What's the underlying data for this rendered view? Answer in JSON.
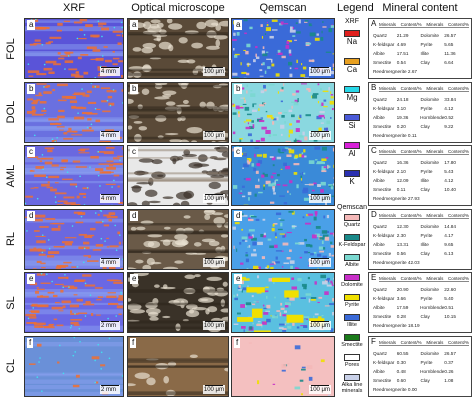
{
  "headers": {
    "xrf": "XRF",
    "optical": "Optical microscope",
    "qemscan": "Qemscan",
    "legend": "Legend",
    "mineral": "Mineral content"
  },
  "rows": [
    {
      "label": "FOL",
      "tags": [
        "a",
        "a",
        "a"
      ],
      "scales": [
        "4 mm",
        "100 μm",
        "100 μm"
      ],
      "table_letter": "A",
      "minerals": [
        [
          "Quartz",
          "21.29",
          "Dolomite",
          "26.57"
        ],
        [
          "K-feldspar",
          "4.69",
          "Pyrite",
          "5.65"
        ],
        [
          "Albite",
          "17.51",
          "Illite",
          "11.36"
        ],
        [
          "Smectite",
          "0.54",
          "Clay",
          "6.64"
        ]
      ],
      "reedmergnerite": "Reedmergnerite  2.67"
    },
    {
      "label": "DOL",
      "tags": [
        "b",
        "b",
        "b"
      ],
      "scales": [
        "4 mm",
        "100 μm",
        "100 μm"
      ],
      "table_letter": "B",
      "minerals": [
        [
          "Quartz",
          "24.18",
          "Dolomite",
          "33.84"
        ],
        [
          "K-feldspar",
          "3.10",
          "Pyrite",
          "4.12"
        ],
        [
          "Albite",
          "19.36",
          "Hornblende",
          "0.52"
        ],
        [
          "Smectite",
          "0.20",
          "Clay",
          "9.22"
        ]
      ],
      "reedmergnerite": "Reedmergnerite  0.11"
    },
    {
      "label": "AML",
      "tags": [
        "c",
        "c",
        "c"
      ],
      "scales": [
        "4 mm",
        "100 μm",
        "100 μm"
      ],
      "table_letter": "C",
      "minerals": [
        [
          "Quartz",
          "16.36",
          "Dolomite",
          "17.80"
        ],
        [
          "K-feldspar",
          "2.10",
          "Pyrite",
          "5.43"
        ],
        [
          "Albite",
          "12.09",
          "Illite",
          "4.12"
        ],
        [
          "Smectite",
          "0.11",
          "Clay",
          "10.40"
        ]
      ],
      "reedmergnerite": "Reedmergnerite  27.93"
    },
    {
      "label": "RL",
      "tags": [
        "d",
        "d",
        "d"
      ],
      "scales": [
        "4 mm",
        "100 μm",
        "100 μm"
      ],
      "table_letter": "D",
      "minerals": [
        [
          "Quartz",
          "12.30",
          "Dolomite",
          "14.84"
        ],
        [
          "K-feldspar",
          "2.30",
          "Pyrite",
          "4.17"
        ],
        [
          "Albite",
          "13.31",
          "Illite",
          "9.65"
        ],
        [
          "Smectite",
          "0.56",
          "Clay",
          "6.13"
        ]
      ],
      "reedmergnerite": "Reedmergnerite  42.03"
    },
    {
      "label": "SL",
      "tags": [
        "e",
        "e",
        "e"
      ],
      "scales": [
        "2 mm",
        "100 μm",
        "100 μm"
      ],
      "table_letter": "E",
      "minerals": [
        [
          "Quartz",
          "20.90",
          "Dolomite",
          "22.60"
        ],
        [
          "K-feldspar",
          "3.66",
          "Pyrite",
          "5.40"
        ],
        [
          "Albite",
          "17.59",
          "Hornblende",
          "0.51"
        ],
        [
          "Smectite",
          "0.28",
          "Clay",
          "10.15"
        ]
      ],
      "reedmergnerite": "Reedmergnerite  18.19"
    },
    {
      "label": "CL",
      "tags": [
        "f",
        "f",
        "f"
      ],
      "scales": [
        "2 mm",
        "100 μm",
        "100 μm"
      ],
      "table_letter": "F",
      "minerals": [
        [
          "Quartz",
          "60.55",
          "Dolomite",
          "26.57"
        ],
        [
          "K-feldspar",
          "0.30",
          "Pyrite",
          "0.37"
        ],
        [
          "Albite",
          "0.48",
          "Hornblende",
          "0.26"
        ],
        [
          "Smectite",
          "0.60",
          "Clay",
          "1.08"
        ]
      ],
      "reedmergnerite": "Reedmergnerite  0.00"
    }
  ],
  "table_header": {
    "c1": "Minerals",
    "c2": "Content/%",
    "c3": "Minerals",
    "c4": "Content/%"
  },
  "legend": {
    "xrf_title": "XRF",
    "elements": [
      {
        "name": "Na",
        "color": "#e0201e"
      },
      {
        "name": "Ca",
        "color": "#e8a020"
      },
      {
        "name": "Mg",
        "color": "#28d8e8"
      },
      {
        "name": "Si",
        "color": "#4a5ad8"
      },
      {
        "name": "Al",
        "color": "#d820d8"
      },
      {
        "name": "K",
        "color": "#2a30b0"
      }
    ],
    "qem_title": "Qemscan",
    "minerals": [
      {
        "name": "Quartz",
        "color": "#f4b8b8"
      },
      {
        "name": "K-Feldspar",
        "color": "#1a8a8a"
      },
      {
        "name": "Albite",
        "color": "#7ad8d0"
      },
      {
        "name": "Dolomite",
        "color": "#c830c8"
      },
      {
        "name": "Pyrite",
        "color": "#f0e000"
      },
      {
        "name": "Illite",
        "color": "#3a6ad8"
      },
      {
        "name": "Smectite",
        "color": "#1a7a1a"
      },
      {
        "name": "Pores",
        "color": "#ffffff"
      },
      {
        "name": "Alka line minerals",
        "color": "#c8d0e8"
      }
    ]
  }
}
